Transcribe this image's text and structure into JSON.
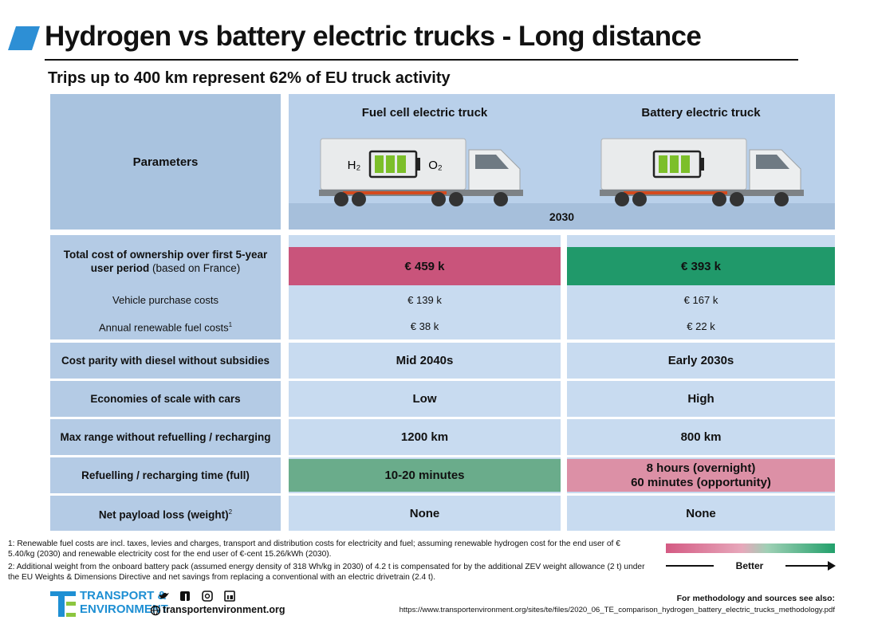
{
  "header": {
    "title": "Hydrogen vs battery electric trucks - Long distance",
    "subtitle": "Trips up to 400 km represent 62% of EU truck activity"
  },
  "table": {
    "parameters_heading": "Parameters",
    "fuel_cell_heading": "Fuel cell electric truck",
    "battery_heading": "Battery electric truck",
    "year": "2030",
    "fuel_cell_truck_labels": [
      "H₂",
      "O₂"
    ],
    "rows": [
      {
        "label": "Total cost of ownership  over first 5-year user period",
        "label_note": "(based on France)",
        "fuel_cell": "€ 459 k",
        "battery": "€ 393 k",
        "sub_rows": [
          {
            "label": "Vehicle purchase costs",
            "fuel_cell": "€ 139 k",
            "battery": "€ 167 k"
          },
          {
            "label": "Annual renewable fuel costs",
            "footnote_ref": "1",
            "fuel_cell": "€ 38 k",
            "battery": "€ 22 k"
          }
        ]
      },
      {
        "label": "Cost parity with diesel without subsidies",
        "fuel_cell": "Mid 2040s",
        "battery": "Early 2030s"
      },
      {
        "label": "Economies of scale with cars",
        "fuel_cell": "Low",
        "battery": "High"
      },
      {
        "label": "Max range without refuelling / recharging",
        "fuel_cell": "1200 km",
        "battery": "800 km"
      },
      {
        "label": "Refuelling / recharging time (full)",
        "fuel_cell": "10-20  minutes",
        "battery": [
          "8 hours (overnight)",
          "60 minutes (opportunity)"
        ]
      },
      {
        "label": "Net payload loss (weight)",
        "footnote_ref": "2",
        "fuel_cell": "None",
        "battery": "None"
      }
    ]
  },
  "footnotes": [
    "1: Renewable fuel costs are incl. taxes, levies and charges, transport and distribution costs for electricity and fuel; assuming renewable hydrogen cost for the end user of € 5.40/kg (2030) and renewable electricity cost for the end user of €-cent 15.26/kWh (2030).",
    "2: Additional weight from the onboard battery pack (assumed energy density of 318 Wh/kg in 2030) of 4.2 t is compensated for by the additional ZEV weight allowance (2 t) under the EU Weights & Dimensions Directive and net savings from replacing a conventional with an electric drivetrain (2.4 t)."
  ],
  "legend": {
    "label": "Better"
  },
  "footer": {
    "logo_line1": "TRANSPORT &",
    "logo_line2": "ENVIRONMENT",
    "website": "transportenvironment.org",
    "sources_heading": "For methodology and sources see also:",
    "sources_url": "https://www.transportenvironment.org/sites/te/files/2020_06_TE_comparison_hydrogen_battery_electric_trucks_methodology.pdf"
  }
}
